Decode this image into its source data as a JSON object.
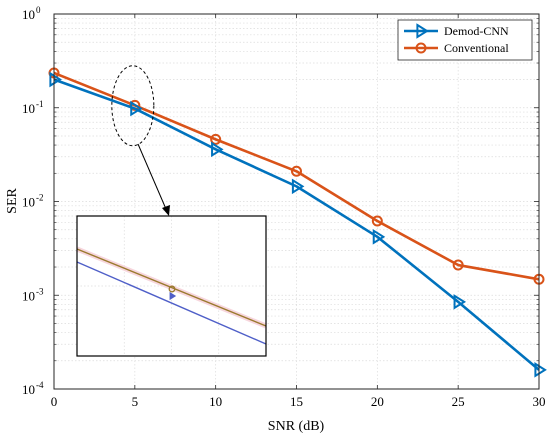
{
  "chart_data": {
    "type": "line",
    "title": "",
    "xlabel": "SNR (dB)",
    "ylabel": "SER",
    "xlim": [
      0,
      30
    ],
    "ylim": [
      0.0001,
      1
    ],
    "yscale": "log",
    "grid": true,
    "legend_position": "top-right",
    "x": [
      0,
      5,
      10,
      15,
      20,
      25,
      30
    ],
    "x_tick_labels": [
      "0",
      "5",
      "10",
      "15",
      "20",
      "25",
      "30"
    ],
    "y_ticks": [
      {
        "value": 1,
        "base": "10",
        "exp": "0"
      },
      {
        "value": 0.1,
        "base": "10",
        "exp": "-1"
      },
      {
        "value": 0.01,
        "base": "10",
        "exp": "-2"
      },
      {
        "value": 0.001,
        "base": "10",
        "exp": "-3"
      },
      {
        "value": 0.0001,
        "base": "10",
        "exp": "-4"
      }
    ],
    "series": [
      {
        "name": "Demod-CNN",
        "color": "#0072BD",
        "marker": "triangle-right",
        "values": [
          0.2,
          0.098,
          0.036,
          0.0145,
          0.0042,
          0.00085,
          0.00016
        ]
      },
      {
        "name": "Conventional",
        "color": "#D95319",
        "marker": "circle",
        "values": [
          0.235,
          0.106,
          0.046,
          0.021,
          0.0062,
          0.0021,
          0.00148
        ]
      }
    ],
    "annotations": [
      {
        "type": "zoom-ellipse",
        "x": 5,
        "y": 0.1,
        "style": "dashed"
      },
      {
        "type": "inset",
        "description": "zoomed view near SNR 5 dB",
        "series_colors": [
          "#4F5FC8",
          "#9A7A2E"
        ]
      }
    ]
  }
}
